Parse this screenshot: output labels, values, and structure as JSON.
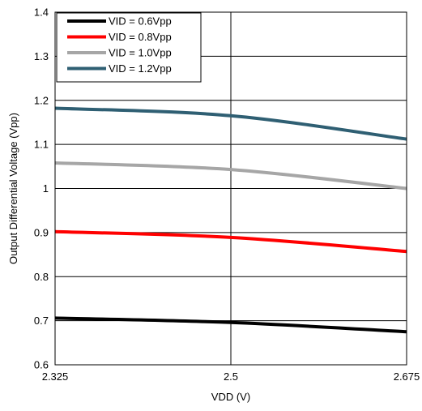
{
  "chart_data": {
    "type": "line",
    "title": "",
    "xlabel": "VDD (V)",
    "ylabel": "Output Differential Voltage (Vpp)",
    "xlim": [
      2.325,
      2.675
    ],
    "ylim": [
      0.6,
      1.4
    ],
    "x_ticks": [
      "2.325",
      "2.5",
      "2.675"
    ],
    "x_tick_values": [
      2.325,
      2.5,
      2.675
    ],
    "y_ticks": [
      "0.6",
      "0.7",
      "0.8",
      "0.9",
      "1",
      "1.1",
      "1.2",
      "1.3",
      "1.4"
    ],
    "y_tick_values": [
      0.6,
      0.7,
      0.8,
      0.9,
      1.0,
      1.1,
      1.2,
      1.3,
      1.4
    ],
    "grid": true,
    "legend_position": "top-left",
    "x": [
      2.325,
      2.5,
      2.675
    ],
    "series": [
      {
        "name": "VID = 0.6Vpp",
        "color": "#000000",
        "values": [
          0.706,
          0.696,
          0.675
        ]
      },
      {
        "name": "VID = 0.8Vpp",
        "color": "#ff0000",
        "values": [
          0.902,
          0.889,
          0.857
        ]
      },
      {
        "name": "VID = 1.0Vpp",
        "color": "#a6a6a6",
        "values": [
          1.058,
          1.043,
          1.0
        ]
      },
      {
        "name": "VID = 1.2Vpp",
        "color": "#2f5f73",
        "values": [
          1.182,
          1.165,
          1.112
        ]
      }
    ]
  }
}
